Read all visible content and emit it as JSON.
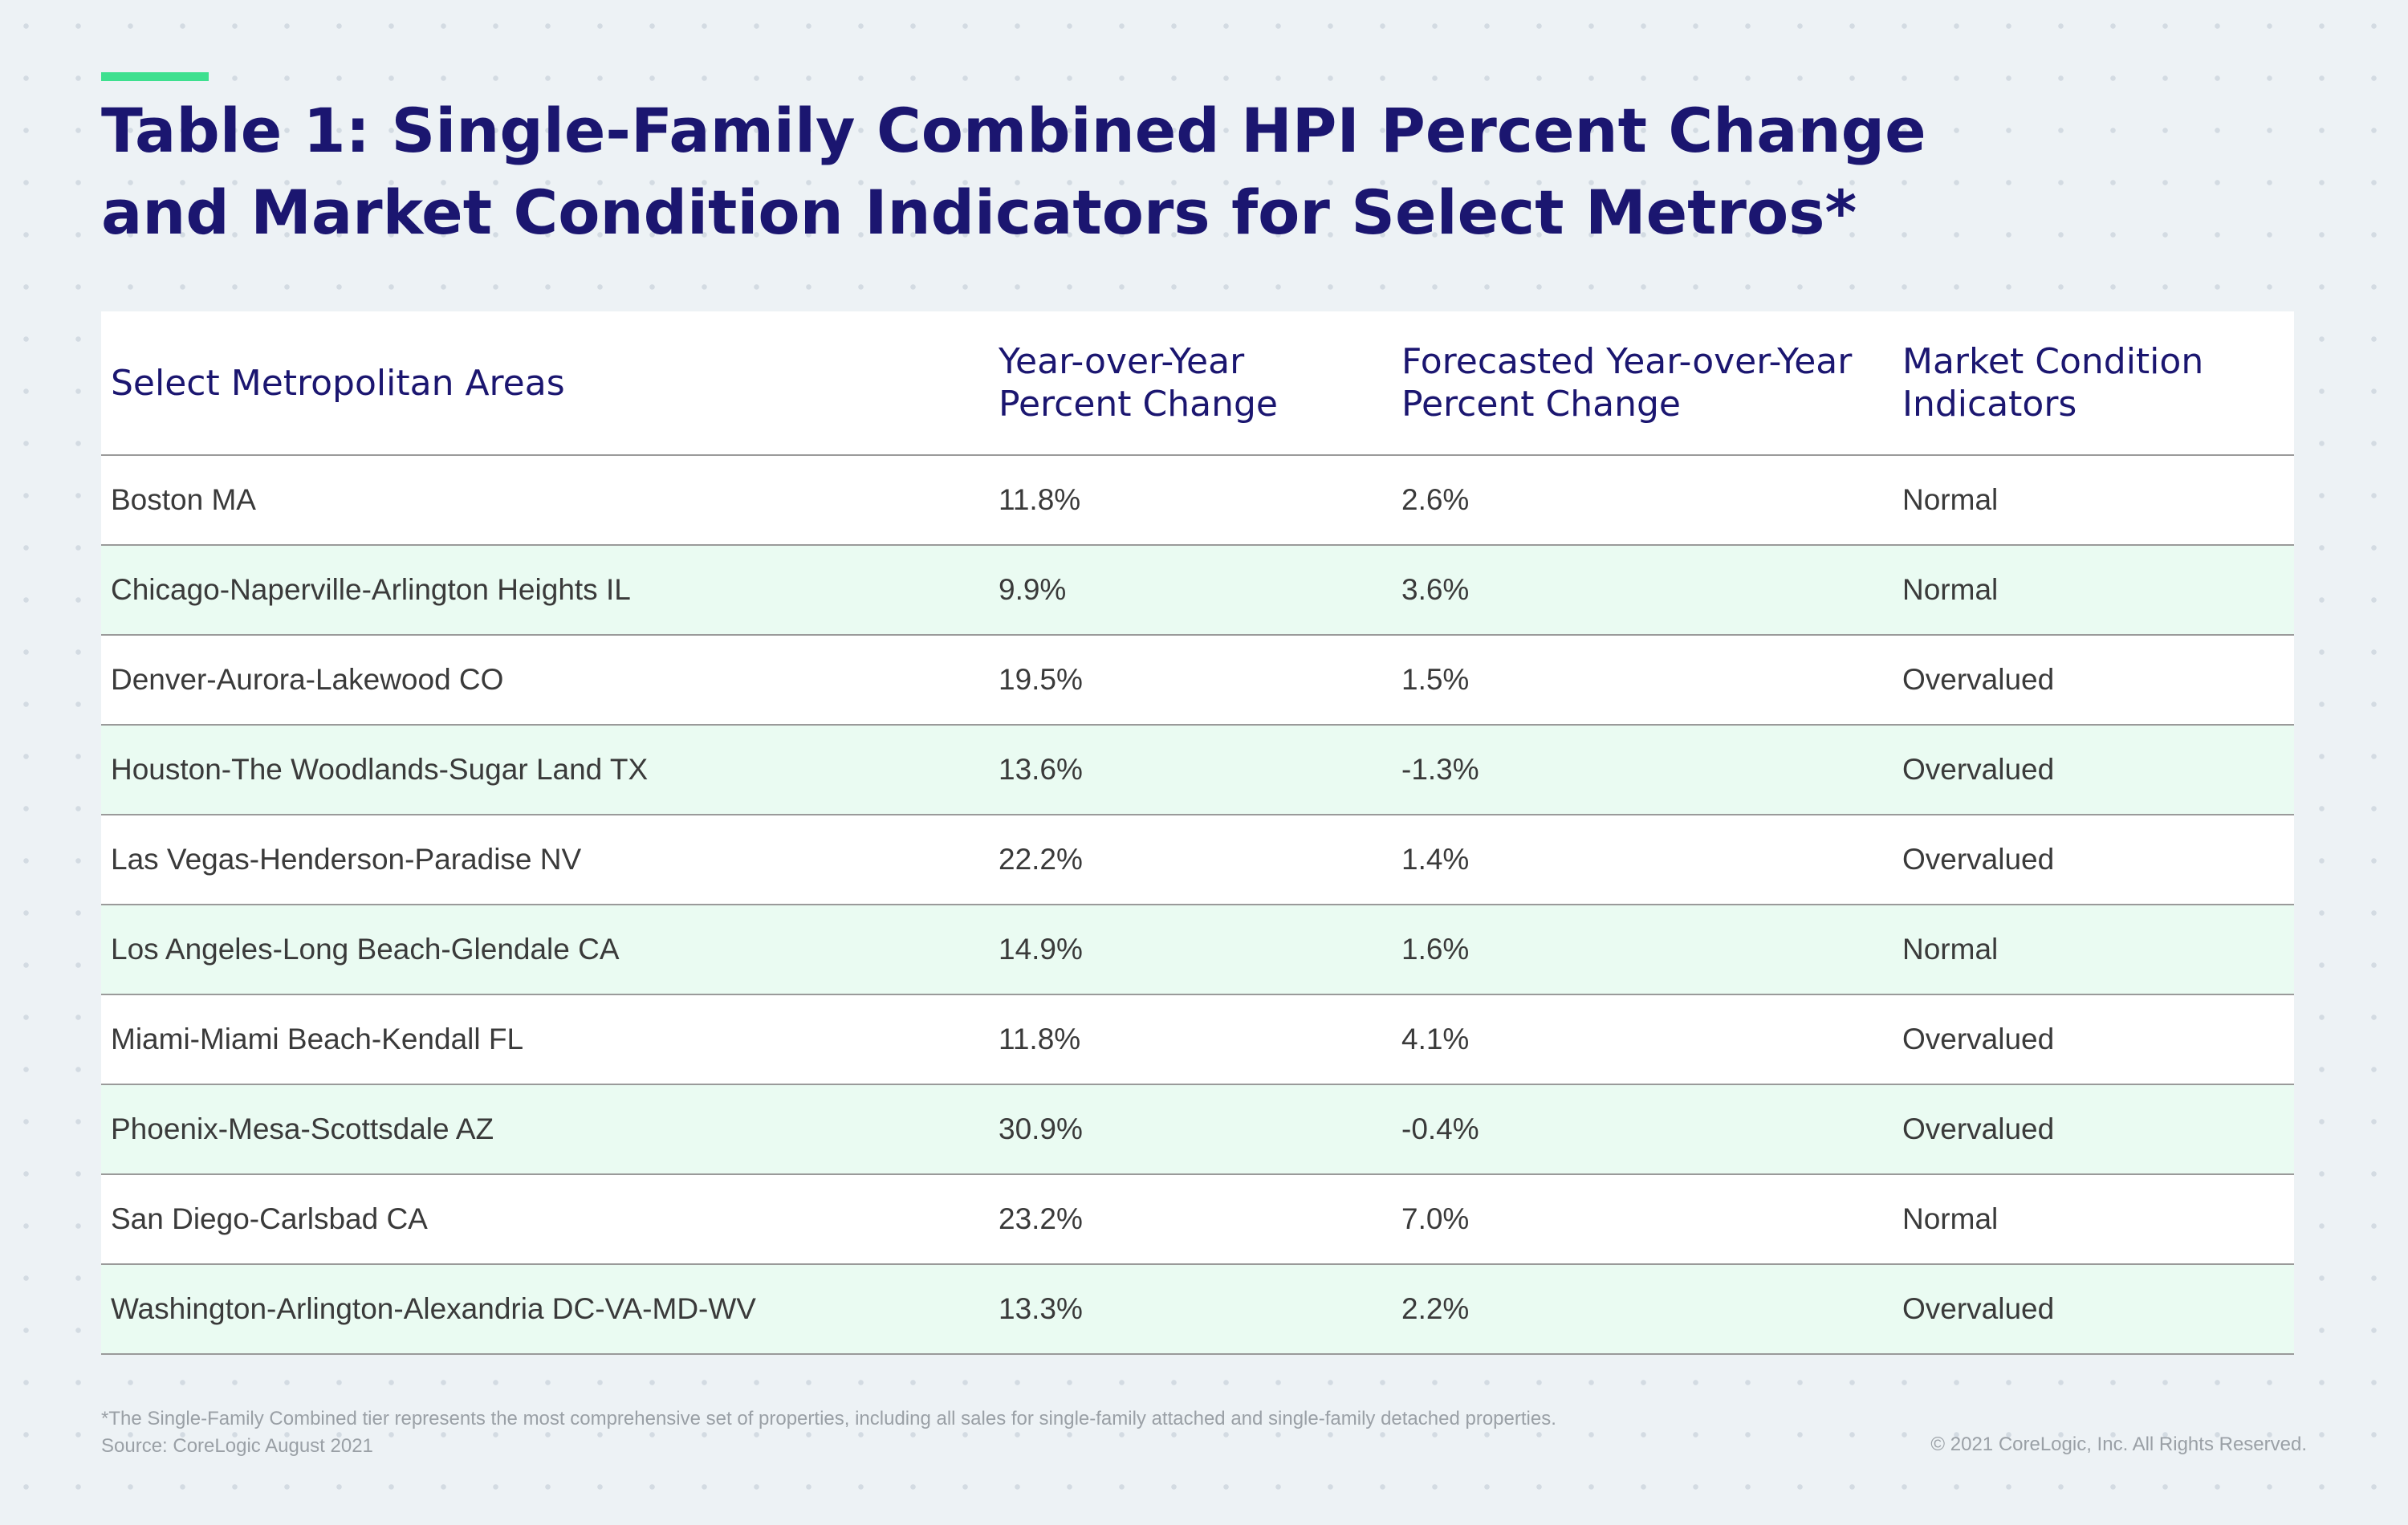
{
  "header": {
    "title": "Table 1: Single-Family Combined HPI Percent Change and Market Condition Indicators for Select Metros*"
  },
  "table": {
    "columns": [
      "Select Metropolitan Areas",
      "Year-over-Year Percent Change",
      "Forecasted Year-over-Year Percent Change",
      "Market Condition Indicators"
    ],
    "rows": [
      [
        "Boston MA",
        "11.8%",
        "2.6%",
        "Normal"
      ],
      [
        "Chicago-Naperville-Arlington Heights IL",
        "9.9%",
        "3.6%",
        "Normal"
      ],
      [
        "Denver-Aurora-Lakewood CO",
        "19.5%",
        "1.5%",
        "Overvalued"
      ],
      [
        "Houston-The Woodlands-Sugar Land TX",
        "13.6%",
        "-1.3%",
        "Overvalued"
      ],
      [
        "Las Vegas-Henderson-Paradise NV",
        "22.2%",
        "1.4%",
        "Overvalued"
      ],
      [
        "Los Angeles-Long Beach-Glendale CA",
        "14.9%",
        "1.6%",
        "Normal"
      ],
      [
        "Miami-Miami Beach-Kendall FL",
        "11.8%",
        "4.1%",
        "Overvalued"
      ],
      [
        "Phoenix-Mesa-Scottsdale AZ",
        "30.9%",
        "-0.4%",
        "Overvalued"
      ],
      [
        "San Diego-Carlsbad CA",
        "23.2%",
        "7.0%",
        "Normal"
      ],
      [
        "Washington-Arlington-Alexandria DC-VA-MD-WV",
        "13.3%",
        "2.2%",
        "Overvalued"
      ]
    ]
  },
  "footnote": "*The Single-Family Combined tier represents the most comprehensive set of properties, including all sales for single-family attached and single-family detached properties.",
  "source": "Source: CoreLogic August 2021",
  "copyright": "© 2021 CoreLogic, Inc. All Rights Reserved."
}
